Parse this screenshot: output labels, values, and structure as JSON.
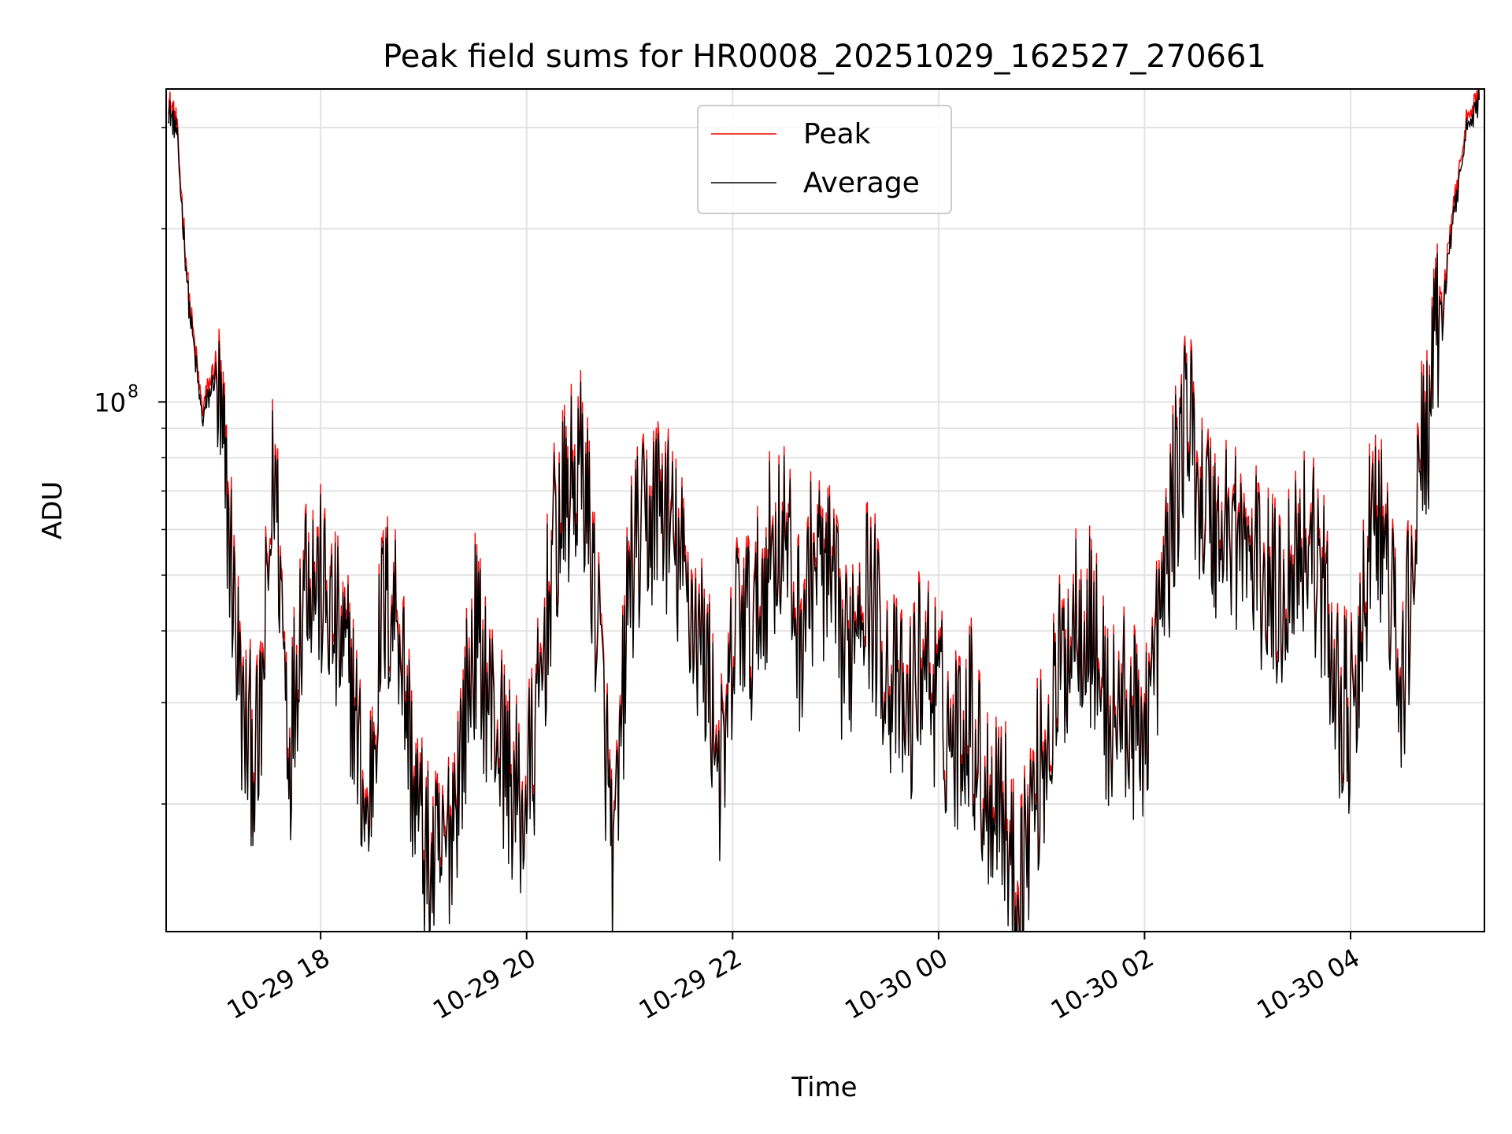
{
  "chart_data": {
    "type": "line",
    "title": "Peak field sums for HR0008_20251029_162527_270661",
    "xlabel": "Time",
    "ylabel": "ADU",
    "yscale": "log",
    "grid": true,
    "legend_position": "top-center",
    "xlim_hours": [
      16.5,
      5.3
    ],
    "ylim": [
      12000000,
      350000000
    ],
    "x_tick_labels": [
      "10-29 18",
      "10-29 20",
      "10-29 22",
      "10-30 00",
      "10-30 02",
      "10-30 04"
    ],
    "x_tick_hours": [
      18,
      20,
      22,
      24,
      26,
      28
    ],
    "y_tick_label_base": "10",
    "y_tick_label_exp": "8",
    "y_major_tick": 100000000,
    "y_minor_ticks": [
      20000000,
      30000000,
      40000000,
      50000000,
      60000000,
      70000000,
      80000000,
      90000000,
      200000000,
      300000000
    ],
    "series": [
      {
        "name": "Peak",
        "color": "#ff0000",
        "x_hours": [
          16.52,
          16.6,
          16.72,
          16.85,
          16.98,
          17.1,
          17.25,
          17.4,
          17.55,
          17.7,
          17.85,
          18.0,
          18.15,
          18.3,
          18.45,
          18.6,
          18.75,
          18.9,
          19.05,
          19.2,
          19.35,
          19.5,
          19.65,
          19.8,
          19.95,
          20.1,
          20.25,
          20.4,
          20.55,
          20.7,
          20.85,
          21.0,
          21.15,
          21.3,
          21.45,
          21.6,
          21.75,
          21.9,
          22.05,
          22.2,
          22.35,
          22.5,
          22.65,
          22.8,
          22.95,
          23.1,
          23.25,
          23.4,
          23.55,
          23.7,
          23.85,
          24.0,
          24.15,
          24.3,
          24.45,
          24.6,
          24.75,
          24.9,
          25.05,
          25.2,
          25.35,
          25.5,
          25.65,
          25.8,
          25.95,
          26.1,
          26.25,
          26.4,
          26.55,
          26.7,
          26.85,
          27.0,
          27.15,
          27.3,
          27.45,
          27.6,
          27.75,
          27.9,
          28.05,
          28.2,
          28.35,
          28.5,
          28.65,
          28.8,
          28.95,
          29.1,
          29.25
        ],
        "values": [
          330000000,
          300000000,
          150000000,
          95000000,
          115000000,
          65000000,
          27000000,
          24000000,
          80000000,
          25000000,
          55000000,
          48000000,
          40000000,
          33000000,
          18000000,
          44000000,
          45000000,
          22000000,
          15500000,
          16000000,
          24000000,
          40000000,
          30000000,
          24000000,
          19000000,
          27000000,
          55000000,
          70000000,
          78000000,
          40000000,
          15000000,
          52000000,
          60000000,
          70000000,
          55000000,
          45000000,
          35000000,
          22000000,
          45000000,
          40000000,
          55000000,
          60000000,
          40000000,
          55000000,
          48000000,
          35000000,
          52000000,
          42000000,
          32000000,
          28000000,
          38000000,
          30000000,
          26000000,
          30000000,
          21000000,
          22000000,
          14000000,
          20000000,
          26000000,
          35000000,
          45000000,
          40000000,
          28000000,
          30000000,
          26000000,
          35000000,
          60000000,
          100000000,
          70000000,
          60000000,
          62000000,
          55000000,
          50000000,
          45000000,
          55000000,
          60000000,
          45000000,
          30000000,
          28000000,
          65000000,
          55000000,
          30000000,
          70000000,
          110000000,
          180000000,
          290000000,
          340000000
        ]
      },
      {
        "name": "Average",
        "color": "#000000",
        "x_hours": [
          16.52,
          16.6,
          16.72,
          16.85,
          16.98,
          17.1,
          17.25,
          17.4,
          17.55,
          17.7,
          17.85,
          18.0,
          18.15,
          18.3,
          18.45,
          18.6,
          18.75,
          18.9,
          19.05,
          19.2,
          19.35,
          19.5,
          19.65,
          19.8,
          19.95,
          20.1,
          20.25,
          20.4,
          20.55,
          20.7,
          20.85,
          21.0,
          21.15,
          21.3,
          21.45,
          21.6,
          21.75,
          21.9,
          22.05,
          22.2,
          22.35,
          22.5,
          22.65,
          22.8,
          22.95,
          23.1,
          23.25,
          23.4,
          23.55,
          23.7,
          23.85,
          24.0,
          24.15,
          24.3,
          24.45,
          24.6,
          24.75,
          24.9,
          25.05,
          25.2,
          25.35,
          25.5,
          25.65,
          25.8,
          25.95,
          26.1,
          26.25,
          26.4,
          26.55,
          26.7,
          26.85,
          27.0,
          27.15,
          27.3,
          27.45,
          27.6,
          27.75,
          27.9,
          28.05,
          28.2,
          28.35,
          28.5,
          28.65,
          28.8,
          28.95,
          29.1,
          29.25
        ],
        "values": [
          325000000,
          295000000,
          148000000,
          93000000,
          112000000,
          63000000,
          26500000,
          23500000,
          78000000,
          24500000,
          54000000,
          47000000,
          39000000,
          32500000,
          17700000,
          43000000,
          44000000,
          21500000,
          15200000,
          15700000,
          23500000,
          39000000,
          29500000,
          23500000,
          18700000,
          26500000,
          54000000,
          68000000,
          76000000,
          39000000,
          14700000,
          51000000,
          59000000,
          68000000,
          54000000,
          44000000,
          34500000,
          21500000,
          44000000,
          39000000,
          54000000,
          59000000,
          39000000,
          54000000,
          47000000,
          34500000,
          51000000,
          41000000,
          31500000,
          27500000,
          37000000,
          29500000,
          25500000,
          29500000,
          20500000,
          21500000,
          13500000,
          19500000,
          25500000,
          34500000,
          44000000,
          39000000,
          27500000,
          29500000,
          25500000,
          34500000,
          59000000,
          98000000,
          68000000,
          59000000,
          61000000,
          54000000,
          49000000,
          44000000,
          54000000,
          59000000,
          44000000,
          29500000,
          27500000,
          63000000,
          54000000,
          29500000,
          68000000,
          108000000,
          176000000,
          285000000,
          335000000
        ]
      }
    ]
  }
}
